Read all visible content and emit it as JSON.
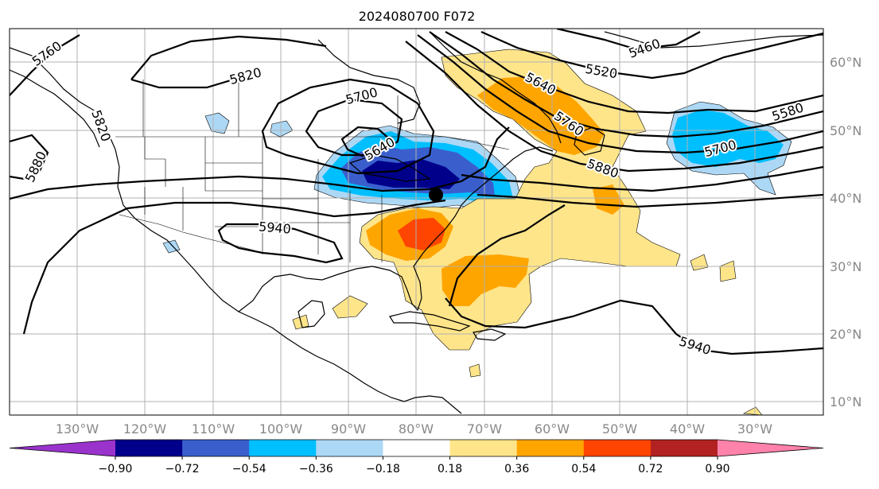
{
  "title": "2024080700 F072",
  "map": {
    "lat_labels": [
      "60°N",
      "50°N",
      "40°N",
      "30°N",
      "20°N",
      "10°N"
    ],
    "lon_labels": [
      "130°W",
      "120°W",
      "110°W",
      "100°W",
      "90°W",
      "80°W",
      "70°W",
      "60°W",
      "50°W",
      "40°W",
      "30°W"
    ],
    "contour_labels": [
      "5760",
      "5820",
      "5700",
      "5640",
      "5520",
      "5460",
      "5580",
      "5700",
      "5640",
      "5760",
      "5880",
      "5880",
      "5940",
      "5940",
      "5820"
    ],
    "marker": "storm-center-dot"
  },
  "colorbar": {
    "ticks": [
      "−0.90",
      "−0.72",
      "−0.54",
      "−0.36",
      "−0.18",
      "0.18",
      "0.36",
      "0.54",
      "0.72",
      "0.90"
    ],
    "colors": [
      "#9933cc",
      "#00008b",
      "#3a5fcd",
      "#00bfff",
      "#add8f5",
      "#ffffff",
      "#ffe58a",
      "#ffa500",
      "#ff4500",
      "#b22222",
      "#ff82ab"
    ],
    "extend": "both"
  },
  "fill_colors": {
    "neg_light": "#add8f5",
    "neg_mid": "#00bfff",
    "neg_strong": "#3a5fcd",
    "neg_max": "#00008b",
    "pos_light": "#ffe58a",
    "pos_mid": "#ffa500",
    "pos_strong": "#ff4500"
  }
}
